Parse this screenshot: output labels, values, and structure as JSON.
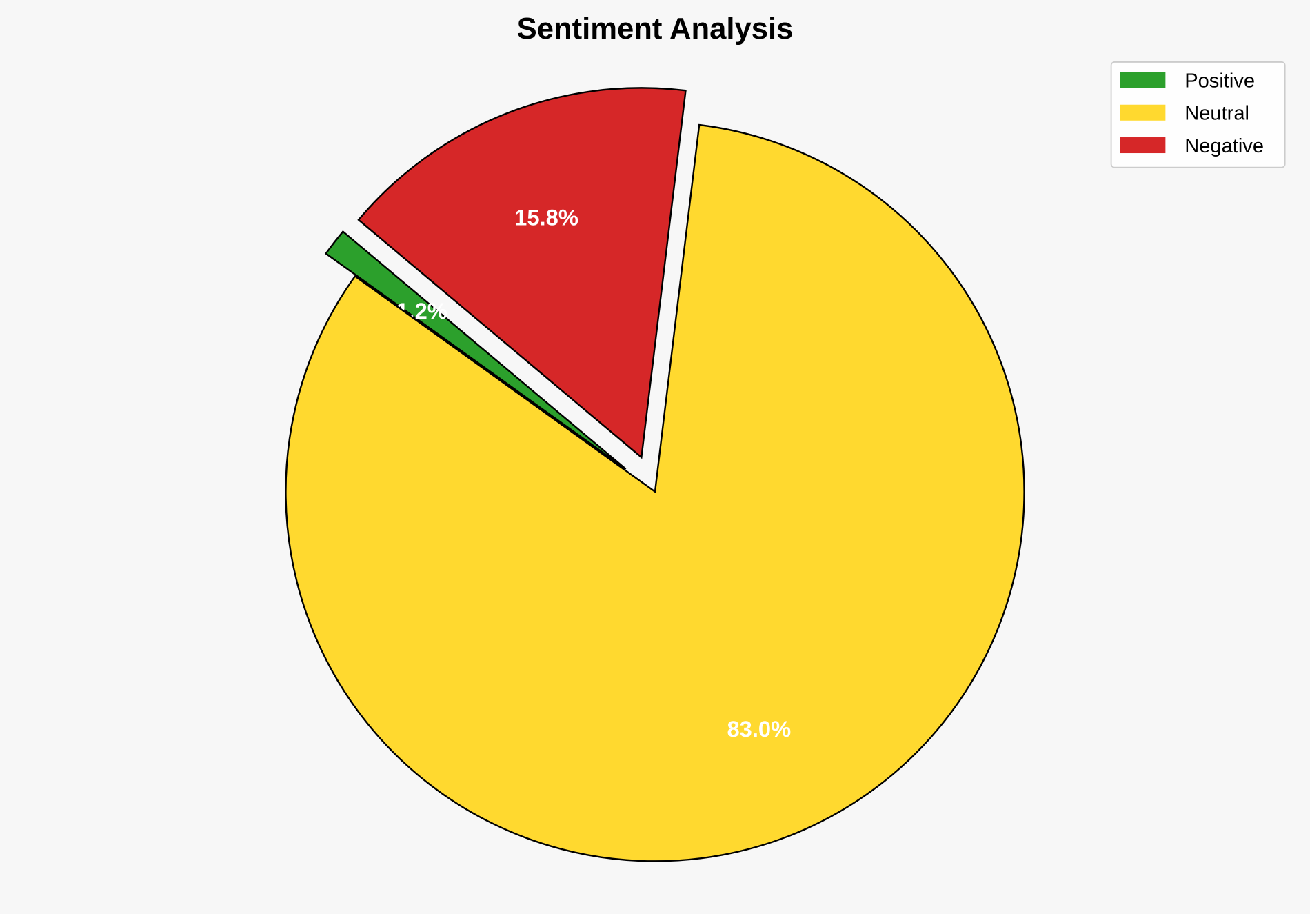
{
  "chart_data": {
    "type": "pie",
    "title": "Sentiment Analysis",
    "categories": [
      "Positive",
      "Neutral",
      "Negative"
    ],
    "values": [
      1.2,
      83.0,
      15.8
    ],
    "labels": [
      "1.2%",
      "83.0%",
      "15.8%"
    ],
    "colors": [
      "#2ca02c",
      "#ffd92f",
      "#d62728"
    ],
    "explode": [
      0.1,
      0,
      0.1
    ],
    "start_angle": 140,
    "direction": "counterclockwise",
    "legend_position": "top-right",
    "edge_color": "#000000"
  }
}
